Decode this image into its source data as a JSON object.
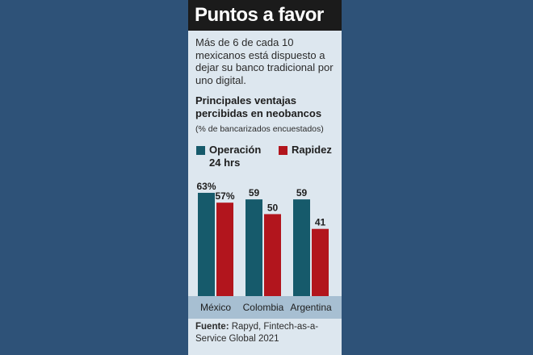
{
  "header": {
    "title": "Puntos a favor"
  },
  "intro": "Más de 6 de cada 10 mexicanos está dispuesto a dejar su banco tradicional por uno digital.",
  "colors": {
    "operacion": "#165a6b",
    "rapidez": "#b2151d",
    "axis_band": "#a7bfd2",
    "background": "#2e5278",
    "card": "#dde7ef"
  },
  "chart_data": {
    "type": "bar",
    "title": "Principales ventajas percibidas en neobancos",
    "subtitle": "(% de bancarizados encuestados)",
    "categories": [
      "México",
      "Colombia",
      "Argentina"
    ],
    "series": [
      {
        "name": "Operación 24 hrs",
        "values": [
          63,
          59,
          59
        ],
        "labels": [
          "63%",
          "59",
          "59"
        ]
      },
      {
        "name": "Rapidez",
        "values": [
          57,
          50,
          41
        ],
        "labels": [
          "57%",
          "50",
          "41"
        ]
      }
    ],
    "ylim": [
      0,
      63
    ],
    "grid": false,
    "legend": "top"
  },
  "source": {
    "label": "Fuente:",
    "text": "Rapyd, Fintech-as-a-Service Global 2021"
  }
}
